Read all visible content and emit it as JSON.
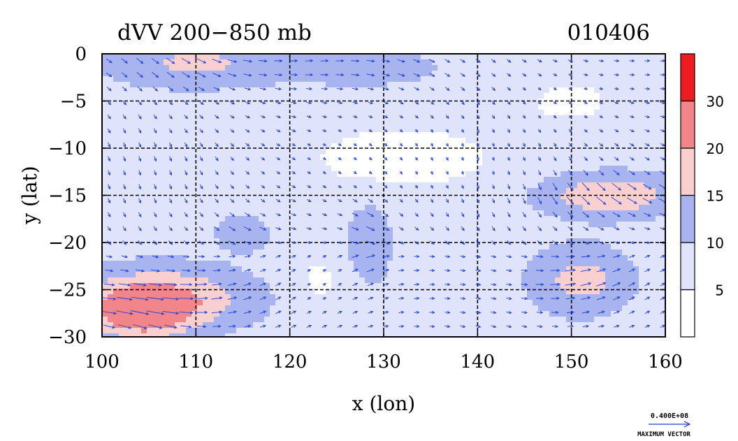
{
  "chart_data": {
    "type": "heatmap",
    "title": "dVV 200−850 mb",
    "date_label": "010406",
    "xlabel": "x (lon)",
    "ylabel": "y (lat)",
    "xlim": [
      100,
      160
    ],
    "ylim": [
      -30,
      0
    ],
    "xticks": [
      "100",
      "110",
      "120",
      "130",
      "140",
      "150",
      "160"
    ],
    "yticks": [
      "0",
      "−5",
      "−10",
      "−15",
      "−20",
      "−25",
      "−30"
    ],
    "grid": true,
    "colorbar": {
      "levels": [
        5,
        10,
        15,
        20,
        30
      ],
      "labels": [
        "5",
        "10",
        "15",
        "20",
        "30"
      ],
      "colors": [
        "#ffffff",
        "#dfe3fb",
        "#a8b4f0",
        "#f9cfcf",
        "#f2858a",
        "#ee1c22"
      ]
    },
    "vector_reference": {
      "value_label": "0.400E+08",
      "caption": "MAXIMUM VECTOR",
      "color": "#1f3fd6"
    }
  }
}
